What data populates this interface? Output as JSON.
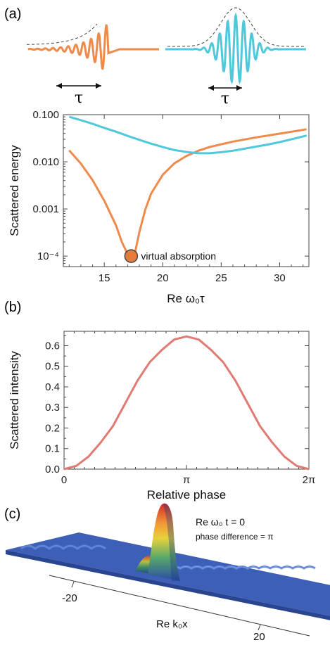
{
  "panels": {
    "a": "(a)",
    "b": "(b)",
    "c": "(c)"
  },
  "colors": {
    "orange": "#f08a4b",
    "cyan": "#4fc8db",
    "red": "#e07a73",
    "envelope": "#444444",
    "virtual_absorption_dot": "#e57c3c"
  },
  "pulses": {
    "left_label": "τ",
    "right_label": "τ"
  },
  "chart_data": [
    {
      "type": "line",
      "panel": "a",
      "xlabel": "Re ω₀τ",
      "ylabel": "Scattered energy",
      "log_y": true,
      "xlim": [
        11.5,
        32.5
      ],
      "ylim": [
        6e-05,
        0.1
      ],
      "x_ticks": [
        15,
        20,
        25,
        30
      ],
      "y_ticks": [
        {
          "value": 0.1,
          "label": "0.100"
        },
        {
          "value": 0.01,
          "label": "0.010"
        },
        {
          "value": 0.001,
          "label": "0.001"
        },
        {
          "value": 0.0001,
          "label": "10⁻⁴"
        }
      ],
      "series": [
        {
          "color": "#f08a4b",
          "x": [
            12,
            13,
            14,
            15,
            16,
            16.5,
            17,
            17.3,
            17.6,
            18,
            18.5,
            19,
            20,
            21,
            22,
            23,
            24,
            26,
            28,
            30,
            32.3
          ],
          "y": [
            0.0175,
            0.0092,
            0.0041,
            0.0015,
            0.00045,
            0.0002,
            0.00011,
            0.0001,
            0.00011,
            0.00032,
            0.00095,
            0.0021,
            0.0053,
            0.0093,
            0.0132,
            0.017,
            0.0205,
            0.0268,
            0.033,
            0.0395,
            0.049
          ]
        },
        {
          "color": "#4fc8db",
          "x": [
            12,
            13,
            14,
            15,
            16,
            17,
            18,
            19,
            20,
            21,
            22,
            23,
            24,
            25,
            26,
            27,
            28,
            29,
            30,
            31,
            32.3
          ],
          "y": [
            0.09,
            0.0765,
            0.064,
            0.0525,
            0.0435,
            0.0355,
            0.0292,
            0.0243,
            0.0205,
            0.0178,
            0.0162,
            0.0153,
            0.0152,
            0.016,
            0.0172,
            0.019,
            0.021,
            0.0232,
            0.0262,
            0.03,
            0.036
          ]
        }
      ],
      "annotation": {
        "x": 17.3,
        "y": 0.0001,
        "text": "virtual absorption"
      }
    },
    {
      "type": "line",
      "panel": "b",
      "xlabel": "Relative phase",
      "ylabel": "Scattered intensity",
      "xlim": [
        0,
        6.2832
      ],
      "ylim": [
        0,
        0.67
      ],
      "x_ticks": [
        {
          "value": 0,
          "label": "0"
        },
        {
          "value": 3.1416,
          "label": "π"
        },
        {
          "value": 6.2832,
          "label": "2π"
        }
      ],
      "y_ticks": [
        {
          "value": 0.0,
          "label": "0.0"
        },
        {
          "value": 0.1,
          "label": "0.1"
        },
        {
          "value": 0.2,
          "label": "0.2"
        },
        {
          "value": 0.3,
          "label": "0.3"
        },
        {
          "value": 0.4,
          "label": "0.4"
        },
        {
          "value": 0.5,
          "label": "0.5"
        },
        {
          "value": 0.6,
          "label": "0.6"
        }
      ],
      "series": [
        {
          "color": "#e07a73",
          "x": [
            0,
            0.3142,
            0.6283,
            0.9425,
            1.2566,
            1.5708,
            1.885,
            2.1991,
            2.5133,
            2.8274,
            3.1416,
            3.4558,
            3.7699,
            4.0841,
            4.3982,
            4.7124,
            5.0265,
            5.3407,
            5.6549,
            5.969,
            6.2832
          ],
          "y": [
            0.0,
            0.016,
            0.061,
            0.13,
            0.21,
            0.32,
            0.43,
            0.52,
            0.58,
            0.63,
            0.645,
            0.63,
            0.58,
            0.52,
            0.43,
            0.32,
            0.21,
            0.13,
            0.061,
            0.016,
            0.0
          ]
        }
      ]
    }
  ],
  "surface": {
    "annotation_line1": "Re ω₀ t = 0",
    "annotation_line2": "phase difference =  π",
    "tick_left": "-20",
    "tick_right": "20",
    "axis_label": "Re k₀x"
  }
}
